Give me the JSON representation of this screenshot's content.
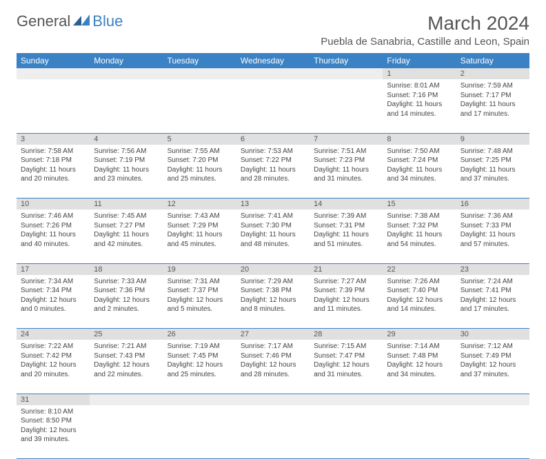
{
  "logo": {
    "part1": "General",
    "part2": "Blue"
  },
  "title": "March 2024",
  "location": "Puebla de Sanabria, Castille and Leon, Spain",
  "colors": {
    "header_bg": "#3b82c4",
    "header_text": "#ffffff",
    "daynum_bg": "#e0e0e0",
    "border": "#3b82c4",
    "text": "#444444"
  },
  "weekdays": [
    "Sunday",
    "Monday",
    "Tuesday",
    "Wednesday",
    "Thursday",
    "Friday",
    "Saturday"
  ],
  "weeks": [
    [
      null,
      null,
      null,
      null,
      null,
      {
        "n": "1",
        "sunrise": "8:01 AM",
        "sunset": "7:16 PM",
        "dlh": 11,
        "dlm": 14
      },
      {
        "n": "2",
        "sunrise": "7:59 AM",
        "sunset": "7:17 PM",
        "dlh": 11,
        "dlm": 17
      }
    ],
    [
      {
        "n": "3",
        "sunrise": "7:58 AM",
        "sunset": "7:18 PM",
        "dlh": 11,
        "dlm": 20
      },
      {
        "n": "4",
        "sunrise": "7:56 AM",
        "sunset": "7:19 PM",
        "dlh": 11,
        "dlm": 23
      },
      {
        "n": "5",
        "sunrise": "7:55 AM",
        "sunset": "7:20 PM",
        "dlh": 11,
        "dlm": 25
      },
      {
        "n": "6",
        "sunrise": "7:53 AM",
        "sunset": "7:22 PM",
        "dlh": 11,
        "dlm": 28
      },
      {
        "n": "7",
        "sunrise": "7:51 AM",
        "sunset": "7:23 PM",
        "dlh": 11,
        "dlm": 31
      },
      {
        "n": "8",
        "sunrise": "7:50 AM",
        "sunset": "7:24 PM",
        "dlh": 11,
        "dlm": 34
      },
      {
        "n": "9",
        "sunrise": "7:48 AM",
        "sunset": "7:25 PM",
        "dlh": 11,
        "dlm": 37
      }
    ],
    [
      {
        "n": "10",
        "sunrise": "7:46 AM",
        "sunset": "7:26 PM",
        "dlh": 11,
        "dlm": 40
      },
      {
        "n": "11",
        "sunrise": "7:45 AM",
        "sunset": "7:27 PM",
        "dlh": 11,
        "dlm": 42
      },
      {
        "n": "12",
        "sunrise": "7:43 AM",
        "sunset": "7:29 PM",
        "dlh": 11,
        "dlm": 45
      },
      {
        "n": "13",
        "sunrise": "7:41 AM",
        "sunset": "7:30 PM",
        "dlh": 11,
        "dlm": 48
      },
      {
        "n": "14",
        "sunrise": "7:39 AM",
        "sunset": "7:31 PM",
        "dlh": 11,
        "dlm": 51
      },
      {
        "n": "15",
        "sunrise": "7:38 AM",
        "sunset": "7:32 PM",
        "dlh": 11,
        "dlm": 54
      },
      {
        "n": "16",
        "sunrise": "7:36 AM",
        "sunset": "7:33 PM",
        "dlh": 11,
        "dlm": 57
      }
    ],
    [
      {
        "n": "17",
        "sunrise": "7:34 AM",
        "sunset": "7:34 PM",
        "dlh": 12,
        "dlm": 0
      },
      {
        "n": "18",
        "sunrise": "7:33 AM",
        "sunset": "7:36 PM",
        "dlh": 12,
        "dlm": 2
      },
      {
        "n": "19",
        "sunrise": "7:31 AM",
        "sunset": "7:37 PM",
        "dlh": 12,
        "dlm": 5
      },
      {
        "n": "20",
        "sunrise": "7:29 AM",
        "sunset": "7:38 PM",
        "dlh": 12,
        "dlm": 8
      },
      {
        "n": "21",
        "sunrise": "7:27 AM",
        "sunset": "7:39 PM",
        "dlh": 12,
        "dlm": 11
      },
      {
        "n": "22",
        "sunrise": "7:26 AM",
        "sunset": "7:40 PM",
        "dlh": 12,
        "dlm": 14
      },
      {
        "n": "23",
        "sunrise": "7:24 AM",
        "sunset": "7:41 PM",
        "dlh": 12,
        "dlm": 17
      }
    ],
    [
      {
        "n": "24",
        "sunrise": "7:22 AM",
        "sunset": "7:42 PM",
        "dlh": 12,
        "dlm": 20
      },
      {
        "n": "25",
        "sunrise": "7:21 AM",
        "sunset": "7:43 PM",
        "dlh": 12,
        "dlm": 22
      },
      {
        "n": "26",
        "sunrise": "7:19 AM",
        "sunset": "7:45 PM",
        "dlh": 12,
        "dlm": 25
      },
      {
        "n": "27",
        "sunrise": "7:17 AM",
        "sunset": "7:46 PM",
        "dlh": 12,
        "dlm": 28
      },
      {
        "n": "28",
        "sunrise": "7:15 AM",
        "sunset": "7:47 PM",
        "dlh": 12,
        "dlm": 31
      },
      {
        "n": "29",
        "sunrise": "7:14 AM",
        "sunset": "7:48 PM",
        "dlh": 12,
        "dlm": 34
      },
      {
        "n": "30",
        "sunrise": "7:12 AM",
        "sunset": "7:49 PM",
        "dlh": 12,
        "dlm": 37
      }
    ],
    [
      {
        "n": "31",
        "sunrise": "8:10 AM",
        "sunset": "8:50 PM",
        "dlh": 12,
        "dlm": 39
      },
      null,
      null,
      null,
      null,
      null,
      null
    ]
  ],
  "labels": {
    "sunrise": "Sunrise:",
    "sunset": "Sunset:",
    "daylight": "Daylight:",
    "hours": "hours",
    "and": "and",
    "minutes": "minutes."
  }
}
